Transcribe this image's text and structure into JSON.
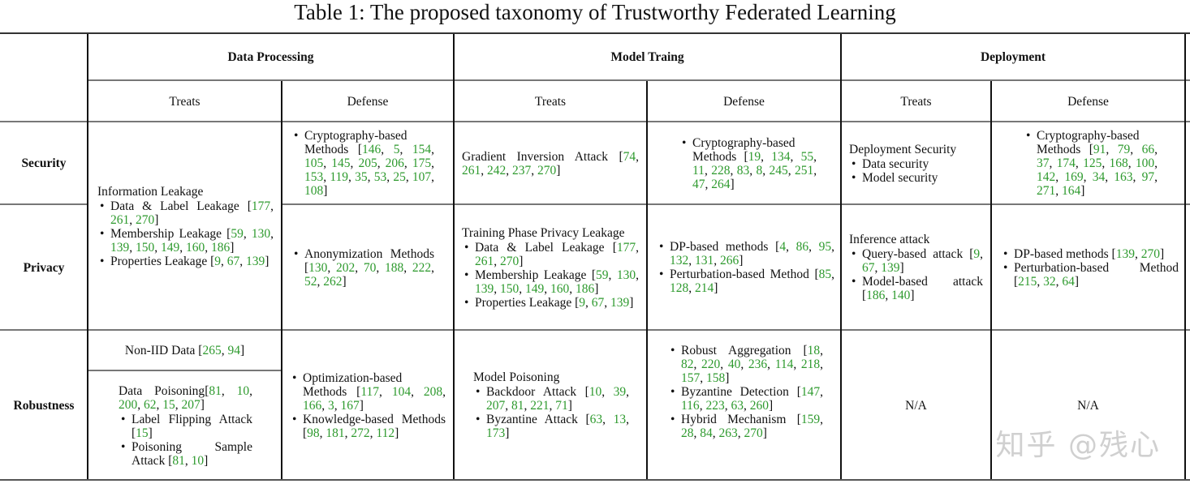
{
  "title": "Table 1: The proposed taxonomy of Trustworthy Federated Learning",
  "colors": {
    "citation": "#2e9a2e",
    "rule": "#777777"
  },
  "groups": [
    "Data Processing",
    "Model Traing",
    "Deployment"
  ],
  "subheaders": [
    "Treats",
    "Defense",
    "Treats",
    "Defense",
    "Treats",
    "Defense"
  ],
  "rows": [
    "Security",
    "Privacy",
    "Robustness"
  ],
  "cells": {
    "dp_treats_sec_priv": {
      "heading": "Information Leakage",
      "items": [
        {
          "text": "Data & Label Leakage",
          "cites": [
            "177",
            "261",
            "270"
          ]
        },
        {
          "text": "Membership Leakage",
          "cites": [
            "59",
            "130",
            "139",
            "150",
            "149",
            "160",
            "186"
          ]
        },
        {
          "text": "Properties Leakage",
          "cites": [
            "9",
            "67",
            "139"
          ]
        }
      ]
    },
    "dp_defense_sec": {
      "items": [
        {
          "text": "Cryptography-based Methods",
          "cites": [
            "146",
            "5",
            "154",
            "105",
            "145",
            "205",
            "206",
            "175",
            "153",
            "119",
            "35",
            "53",
            "25",
            "107",
            "108"
          ]
        }
      ]
    },
    "dp_defense_priv": {
      "items": [
        {
          "text": "Anonymization Methods",
          "cites": [
            "130",
            "202",
            "70",
            "188",
            "222",
            "52",
            "262"
          ]
        }
      ]
    },
    "mt_treats_sec": {
      "plain": {
        "text": "Gradient Inversion Attack",
        "cites": [
          "74",
          "261",
          "242",
          "237",
          "270"
        ]
      }
    },
    "mt_defense_sec": {
      "items": [
        {
          "text": "Cryptography-based Methods",
          "cites": [
            "19",
            "134",
            "55",
            "11",
            "228",
            "83",
            "8",
            "245",
            "251",
            "47",
            "264"
          ]
        }
      ]
    },
    "mt_treats_priv": {
      "heading": "Training Phase Privacy Leakage",
      "items": [
        {
          "text": "Data & Label Leakage",
          "cites": [
            "177",
            "261",
            "270"
          ]
        },
        {
          "text": "Membership Leakage",
          "cites": [
            "59",
            "130",
            "139",
            "150",
            "149",
            "160",
            "186"
          ]
        },
        {
          "text": "Properties Leakage",
          "cites": [
            "9",
            "67",
            "139"
          ]
        }
      ]
    },
    "mt_defense_priv": {
      "items": [
        {
          "text": "DP-based methods",
          "cites": [
            "4",
            "86",
            "95",
            "132",
            "131",
            "266"
          ]
        },
        {
          "text": "Perturbation-based Method",
          "cites": [
            "85",
            "128",
            "214"
          ]
        }
      ]
    },
    "dep_treats_sec": {
      "heading": "Deployment Security",
      "items": [
        {
          "text": "Data security",
          "cites": []
        },
        {
          "text": "Model security",
          "cites": []
        }
      ]
    },
    "dep_defense_sec": {
      "items": [
        {
          "text": "Cryptography-based Methods",
          "cites": [
            "91",
            "79",
            "66",
            "37",
            "174",
            "125",
            "168",
            "100",
            "142",
            "169",
            "34",
            "163",
            "97",
            "271",
            "164"
          ]
        }
      ]
    },
    "dep_treats_priv": {
      "heading": "Inference attack",
      "items": [
        {
          "text": "Query-based attack",
          "cites": [
            "9",
            "67",
            "139"
          ]
        },
        {
          "text": "Model-based attack",
          "cites": [
            "186",
            "140"
          ]
        }
      ]
    },
    "dep_defense_priv": {
      "items": [
        {
          "text": "DP-based methods",
          "cites": [
            "139",
            "270"
          ]
        },
        {
          "text": "Perturbation-based Method",
          "cites": [
            "215",
            "32",
            "64"
          ]
        }
      ]
    },
    "dp_treats_rob_a": {
      "plain": {
        "text": "Non-IID Data",
        "cites": [
          "265",
          "94"
        ]
      }
    },
    "dp_treats_rob_b": {
      "heading": "Data Poisoning",
      "heading_cites": [
        "81",
        "10",
        "200",
        "62",
        "15",
        "207"
      ],
      "items": [
        {
          "text": "Label Flipping Attack",
          "cites": [
            "15"
          ]
        },
        {
          "text": "Poisoning Sample Attack",
          "cites": [
            "81",
            "10"
          ]
        }
      ]
    },
    "dp_defense_rob": {
      "items": [
        {
          "text": "Optimization-based Methods",
          "cites": [
            "117",
            "104",
            "208",
            "166",
            "3",
            "167"
          ]
        },
        {
          "text": "Knowledge-based Methods",
          "cites": [
            "98",
            "181",
            "272",
            "112"
          ]
        }
      ]
    },
    "mt_treats_rob": {
      "heading": "Model Poisoning",
      "items": [
        {
          "text": "Backdoor Attack",
          "cites": [
            "10",
            "39",
            "207",
            "81",
            "221",
            "71"
          ]
        },
        {
          "text": "Byzantine Attack",
          "cites": [
            "63",
            "13",
            "173"
          ]
        }
      ]
    },
    "mt_defense_rob": {
      "items": [
        {
          "text": "Robust Aggregation",
          "cites": [
            "18",
            "82",
            "220",
            "40",
            "236",
            "114",
            "218",
            "157",
            "158"
          ]
        },
        {
          "text": "Byzantine Detection",
          "cites": [
            "147",
            "116",
            "223",
            "63",
            "260"
          ]
        },
        {
          "text": "Hybrid Mechanism",
          "cites": [
            "159",
            "28",
            "84",
            "263",
            "270"
          ]
        }
      ]
    },
    "dep_treats_rob": {
      "na": "N/A"
    },
    "dep_defense_rob": {
      "na": "N/A"
    }
  },
  "watermark": "知乎 @残心"
}
